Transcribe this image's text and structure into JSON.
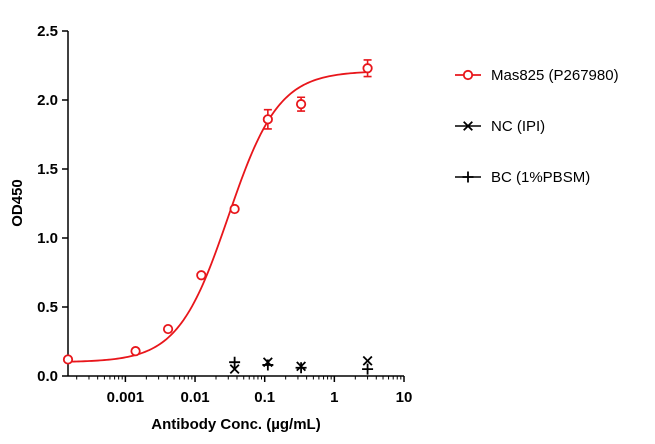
{
  "chart_data": {
    "type": "scatter",
    "title": "",
    "xlabel": "Antibody Conc. (µg/mL)",
    "ylabel": "OD450",
    "x_scale": "log",
    "xlim": [
      0.00015,
      10
    ],
    "ylim": [
      0,
      2.5
    ],
    "x_ticks": [
      0.001,
      0.01,
      0.1,
      1,
      10
    ],
    "x_tick_labels": [
      "0.001",
      "0.01",
      "0.1",
      "1",
      "10"
    ],
    "y_ticks": [
      0,
      0.5,
      1.0,
      1.5,
      2.0,
      2.5
    ],
    "y_tick_labels": [
      "0.0",
      "0.5",
      "1.0",
      "1.5",
      "2.0",
      "2.5"
    ],
    "grid": false,
    "legend_position": "right",
    "series": [
      {
        "name": "Mas825 (P267980)",
        "color": "#e8161b",
        "marker": "open-circle",
        "fit": "sigmoidal 4PL curve",
        "fit_params": {
          "bottom": 0.1,
          "top": 2.21,
          "ec50": 0.03,
          "hill": 1.2
        },
        "x": [
          0.00015,
          0.0014,
          0.0041,
          0.0123,
          0.037,
          0.111,
          0.333,
          3.0
        ],
        "y": [
          0.12,
          0.18,
          0.34,
          0.73,
          1.21,
          1.86,
          1.97,
          2.23
        ],
        "err": [
          0.0,
          0.0,
          0.0,
          0.0,
          0.0,
          0.07,
          0.05,
          0.06
        ]
      },
      {
        "name": "NC (IPI)",
        "color": "#000000",
        "marker": "x",
        "x": [
          0.037,
          0.111,
          0.333,
          3.0
        ],
        "y": [
          0.05,
          0.1,
          0.07,
          0.11
        ]
      },
      {
        "name": "BC (1%PBSM)",
        "color": "#000000",
        "marker": "plus",
        "x": [
          0.037,
          0.111,
          0.333,
          3.0
        ],
        "y": [
          0.1,
          0.08,
          0.06,
          0.05
        ]
      }
    ]
  }
}
